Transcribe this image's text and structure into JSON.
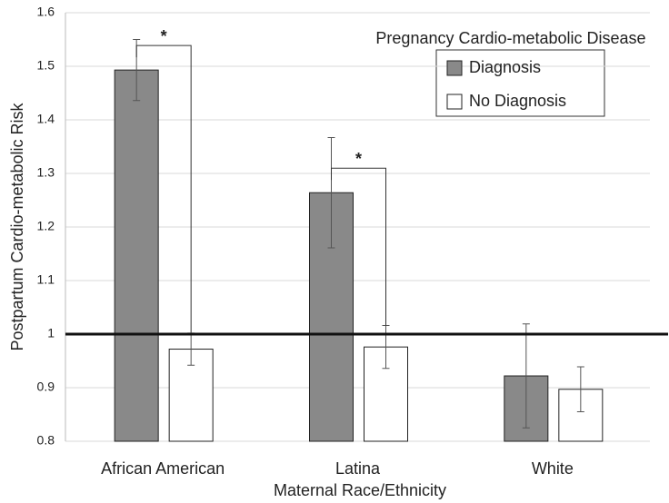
{
  "chart_data": {
    "type": "bar",
    "x_label": "Maternal Race/Ethnicity",
    "y_label": "Postpartum Cardio-metabolic Risk",
    "legend_title": "Pregnancy Cardio-metabolic Disease",
    "categories": [
      "African American",
      "Latina",
      "White"
    ],
    "series": [
      {
        "name": "Diagnosis",
        "color": "#898989",
        "values": [
          1.493,
          1.264,
          0.922
        ],
        "errors": [
          0.057,
          0.103,
          0.097
        ]
      },
      {
        "name": "No Diagnosis",
        "color": "#ffffff",
        "values": [
          0.972,
          0.976,
          0.897
        ],
        "errors": [
          0.03,
          0.04,
          0.042
        ]
      }
    ],
    "annotations": [
      "*",
      "*"
    ],
    "reference_line": 1,
    "ylim": [
      0.8,
      1.6
    ],
    "yticks": [
      0.8,
      0.9,
      1,
      1.1,
      1.2,
      1.3,
      1.4,
      1.5,
      1.6
    ],
    "grid": true
  }
}
